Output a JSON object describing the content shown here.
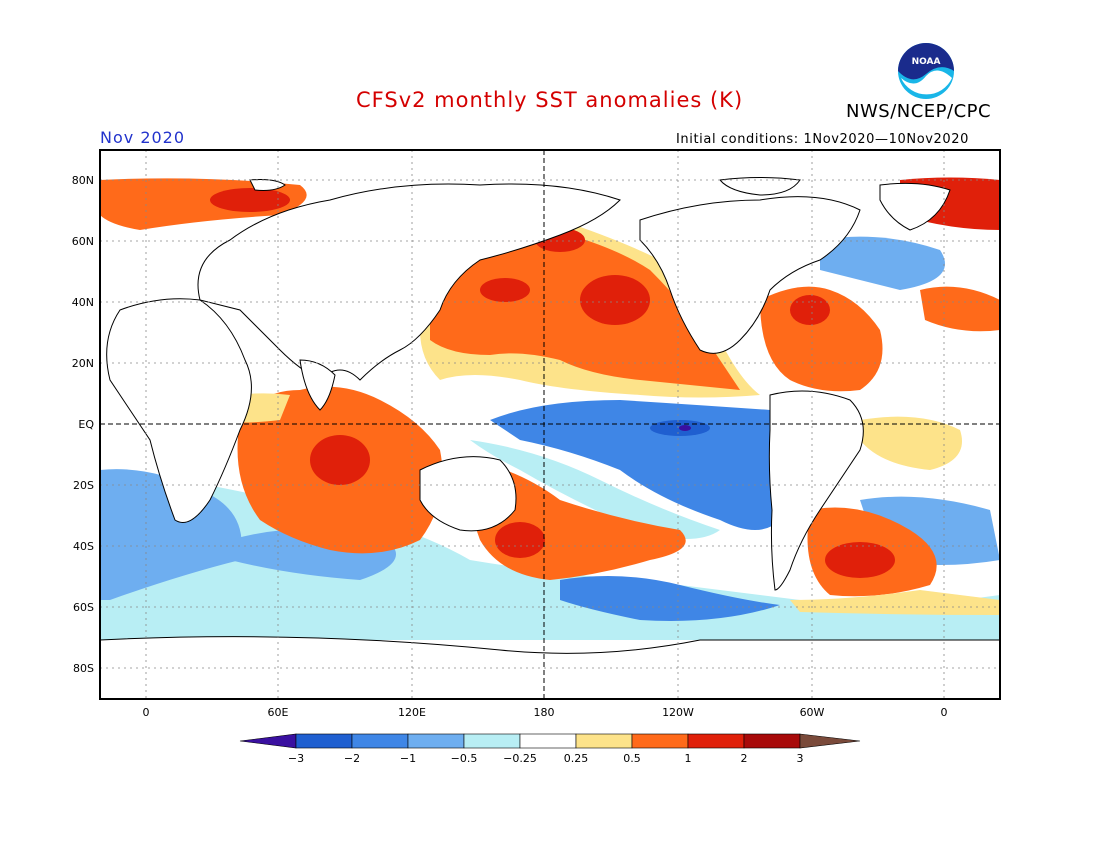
{
  "header": {
    "title": "CFSv2 monthly SST anomalies (K)",
    "agency": "NWS/NCEP/CPC",
    "month": "Nov 2020",
    "initial_conditions": "Initial conditions: 1Nov2020—10Nov2020",
    "logo_text": "NOAA"
  },
  "axes": {
    "lat_labels": [
      "80N",
      "60N",
      "40N",
      "20N",
      "EQ",
      "20S",
      "40S",
      "60S",
      "80S"
    ],
    "lon_labels": [
      "0",
      "60E",
      "120E",
      "180",
      "120W",
      "60W",
      "0"
    ]
  },
  "colorbar": {
    "labels": [
      "−3",
      "−2",
      "−1",
      "−0.5",
      "−0.25",
      "0.25",
      "0.5",
      "1",
      "2",
      "3"
    ],
    "colors": [
      "#3a10a0",
      "#1f5fd0",
      "#3f86e6",
      "#6eaef0",
      "#b8eef4",
      "#ffffff",
      "#fde38a",
      "#ff6a1a",
      "#e0200a",
      "#a80a0a",
      "#7a4a3a"
    ]
  },
  "colors": {
    "title": "#d40000",
    "month": "#2233cc",
    "ocean_neutral": "#ffffff",
    "land": "#ffffff"
  }
}
